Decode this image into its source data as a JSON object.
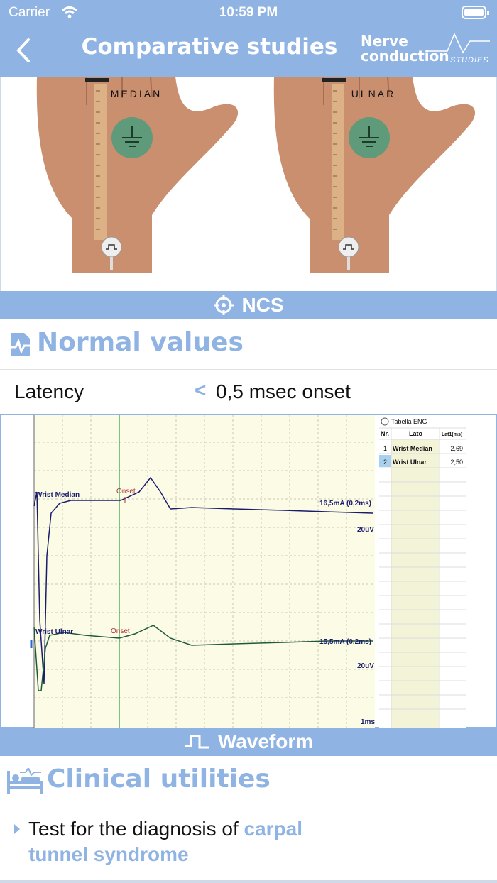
{
  "status_bar": {
    "carrier": "Carrier",
    "time": "10:59 PM"
  },
  "nav": {
    "title": "Comparative studies",
    "logo": {
      "line1": "Nerve",
      "line2": "conduction",
      "line3": "STUDIES"
    }
  },
  "figure": {
    "labels": [
      "MEDIAN",
      "ULNAR"
    ]
  },
  "ncs_bar": {
    "label": "NCS"
  },
  "normal_values": {
    "title": "Normal values",
    "row": {
      "label": "Latency",
      "operator": "<",
      "value": "0,5 msec onset"
    }
  },
  "waveform": {
    "traces": [
      {
        "name": "Wrist Median",
        "onset": "Onset",
        "stimulus": "16,5mA (0,2ms)",
        "gain": "20uV"
      },
      {
        "name": "Wrist Ulnar",
        "onset": "Onset",
        "stimulus": "15,5mA (0,2ms)",
        "gain": "20uV"
      }
    ],
    "timebase": "1ms",
    "table": {
      "title": "Tabella ENG",
      "header": [
        "Nr.",
        "Lato",
        "Lat1(ms)"
      ],
      "rows": [
        [
          "1",
          "Wrist Median",
          "2,69"
        ],
        [
          "2",
          "Wrist Ulnar",
          "2,50"
        ]
      ]
    }
  },
  "waveform_bar": {
    "label": "Waveform"
  },
  "clinical_utilities": {
    "title": "Clinical utilities",
    "items": [
      {
        "text": "Test for the diagnosis of ",
        "highlight": "carpal tunnel syndrome"
      }
    ]
  }
}
